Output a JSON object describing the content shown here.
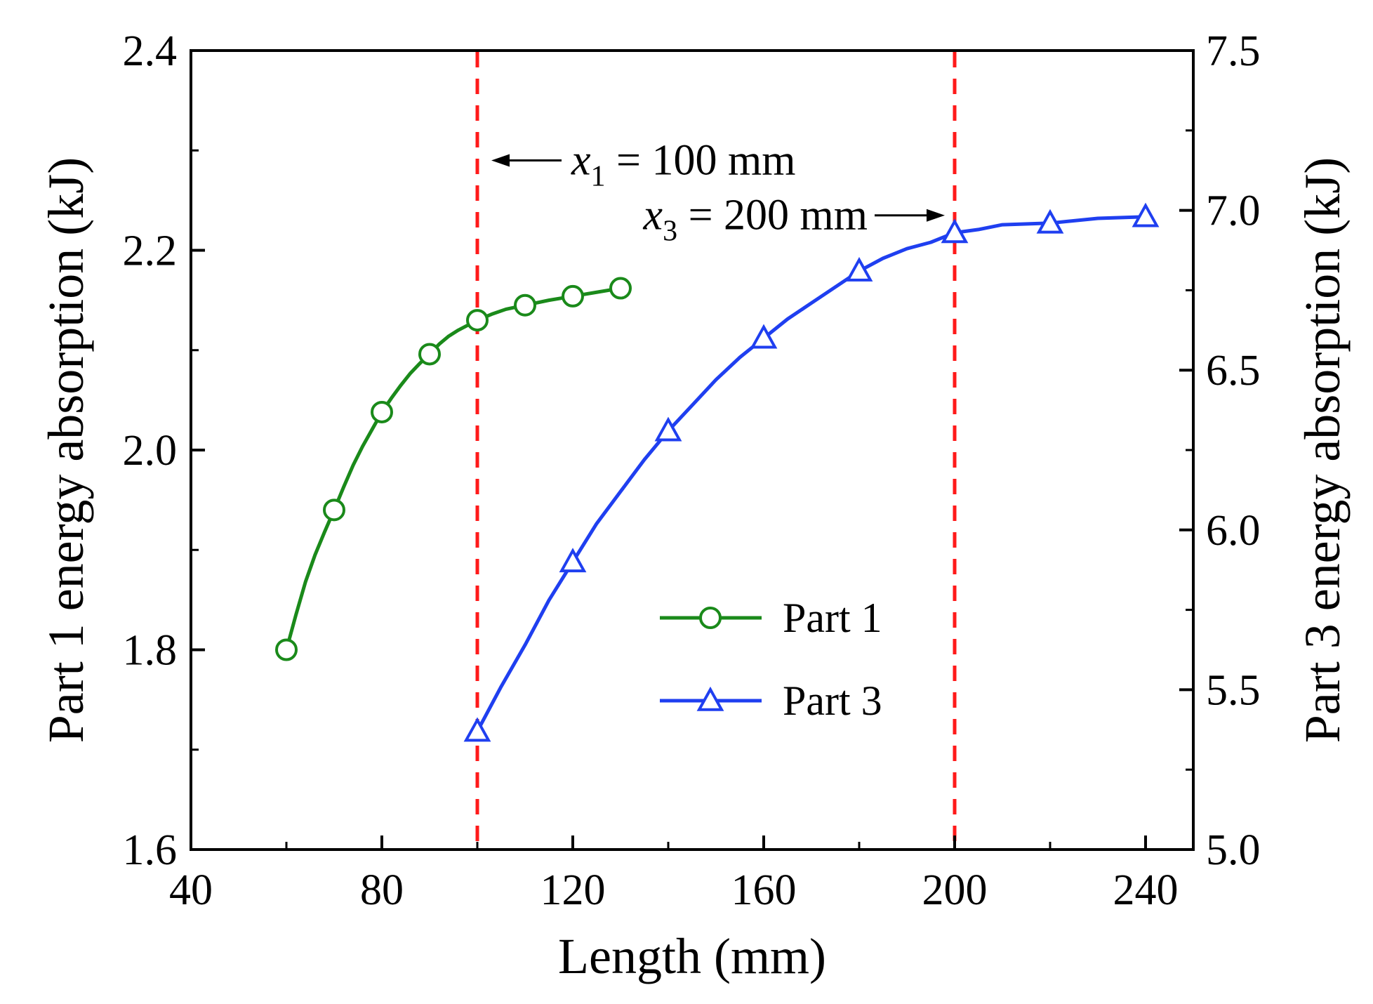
{
  "chart_data": {
    "type": "line",
    "xlabel": "Length (mm)",
    "ylabel_left": "Part 1 energy absorption (kJ)",
    "ylabel_right": "Part 3 energy absorption (kJ)",
    "xlim": [
      40,
      250
    ],
    "ylim_left": [
      1.6,
      2.4
    ],
    "ylim_right": [
      5.0,
      7.5
    ],
    "x_ticks": [
      40,
      80,
      120,
      160,
      200,
      240
    ],
    "x_tick_labels": [
      "40",
      "80",
      "120",
      "160",
      "200",
      "240"
    ],
    "y_left_ticks": [
      1.6,
      1.8,
      2.0,
      2.2,
      2.4
    ],
    "y_left_tick_labels": [
      "1.6",
      "1.8",
      "2.0",
      "2.2",
      "2.4"
    ],
    "y_right_ticks": [
      5.0,
      5.5,
      6.0,
      6.5,
      7.0,
      7.5
    ],
    "y_right_tick_labels": [
      "5.0",
      "5.5",
      "6.0",
      "6.5",
      "7.0",
      "7.5"
    ],
    "series": [
      {
        "name": "Part 1",
        "axis": "left",
        "color": "#1a8a1a",
        "marker": "circle",
        "x": [
          60,
          70,
          80,
          90,
          100,
          110,
          120,
          130
        ],
        "y": [
          1.8,
          1.94,
          2.038,
          2.096,
          2.13,
          2.145,
          2.154,
          2.162
        ],
        "curve_x": [
          60,
          62,
          64,
          66,
          68,
          70,
          72,
          74,
          76,
          78,
          80,
          82,
          84,
          86,
          88,
          90,
          92,
          94,
          96,
          98,
          100,
          103,
          106,
          110,
          115,
          120,
          125,
          130
        ],
        "curve_y": [
          1.8,
          1.835,
          1.868,
          1.895,
          1.918,
          1.94,
          1.963,
          1.985,
          2.004,
          2.021,
          2.038,
          2.052,
          2.065,
          2.077,
          2.087,
          2.096,
          2.106,
          2.114,
          2.12,
          2.125,
          2.13,
          2.136,
          2.141,
          2.145,
          2.15,
          2.154,
          2.158,
          2.162
        ]
      },
      {
        "name": "Part 3",
        "axis": "right",
        "color": "#1f3ff0",
        "marker": "triangle",
        "x": [
          100,
          120,
          140,
          160,
          180,
          200,
          220,
          240
        ],
        "y": [
          5.37,
          5.9,
          6.31,
          6.6,
          6.81,
          6.93,
          6.96,
          6.98
        ],
        "curve_x": [
          100,
          105,
          110,
          115,
          120,
          125,
          130,
          135,
          140,
          145,
          150,
          155,
          160,
          165,
          170,
          175,
          180,
          185,
          190,
          195,
          200,
          205,
          210,
          220,
          230,
          240
        ],
        "curve_y": [
          5.37,
          5.51,
          5.64,
          5.78,
          5.9,
          6.02,
          6.12,
          6.22,
          6.31,
          6.39,
          6.47,
          6.54,
          6.6,
          6.66,
          6.71,
          6.76,
          6.81,
          6.85,
          6.88,
          6.9,
          6.93,
          6.94,
          6.955,
          6.96,
          6.975,
          6.98
        ]
      }
    ],
    "vlines": [
      {
        "x": 100,
        "color": "#ff1a1a"
      },
      {
        "x": 200,
        "color": "#ff1a1a"
      }
    ],
    "annotations": [
      {
        "id": "x1",
        "var": "x",
        "sub": "1",
        "text": " = 100 mm",
        "at_x": 100,
        "at_y_left": 2.29,
        "arrow": "left"
      },
      {
        "id": "x3",
        "var": "x",
        "sub": "3",
        "text": " = 200 mm",
        "at_x": 200,
        "at_y_left": 2.235,
        "arrow": "right"
      }
    ],
    "legend": {
      "position": "lower-center",
      "entries": [
        "Part 1",
        "Part 3"
      ]
    }
  }
}
